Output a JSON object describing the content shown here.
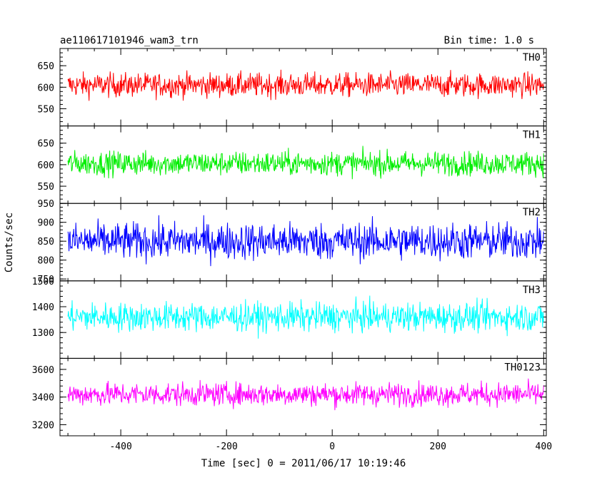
{
  "header": {
    "title": "ae110617101946_wam3_trn",
    "bin_time": "Bin time: 1.0 s"
  },
  "chart_data": {
    "type": "line",
    "ylabel": "Counts/sec",
    "xlabel": "Time [sec] 0 = 2011/06/17 10:19:46",
    "x_ticks": [
      -400,
      -200,
      0,
      200,
      400
    ],
    "xlim": [
      -515,
      405
    ],
    "panels": [
      {
        "name": "TH0",
        "color": "#ff0000",
        "ylim": [
          510,
          690
        ],
        "y_ticks": [
          550,
          600,
          650
        ],
        "mean": 605,
        "amplitude": 20
      },
      {
        "name": "TH1",
        "color": "#00ee00",
        "ylim": [
          510,
          690
        ],
        "y_ticks": [
          550,
          600,
          650
        ],
        "mean": 603,
        "amplitude": 20
      },
      {
        "name": "TH2",
        "color": "#0000ff",
        "ylim": [
          745,
          950
        ],
        "y_ticks": [
          750,
          800,
          850,
          900,
          950
        ],
        "mean": 850,
        "amplitude": 35
      },
      {
        "name": "TH3",
        "color": "#00ffff",
        "ylim": [
          1200,
          1500
        ],
        "y_ticks": [
          1300,
          1400,
          1500
        ],
        "mean": 1360,
        "amplitude": 40
      },
      {
        "name": "TH0123",
        "color": "#ff00ff",
        "ylim": [
          3120,
          3680
        ],
        "y_ticks": [
          3200,
          3400,
          3600
        ],
        "mean": 3420,
        "amplitude": 60
      }
    ]
  }
}
